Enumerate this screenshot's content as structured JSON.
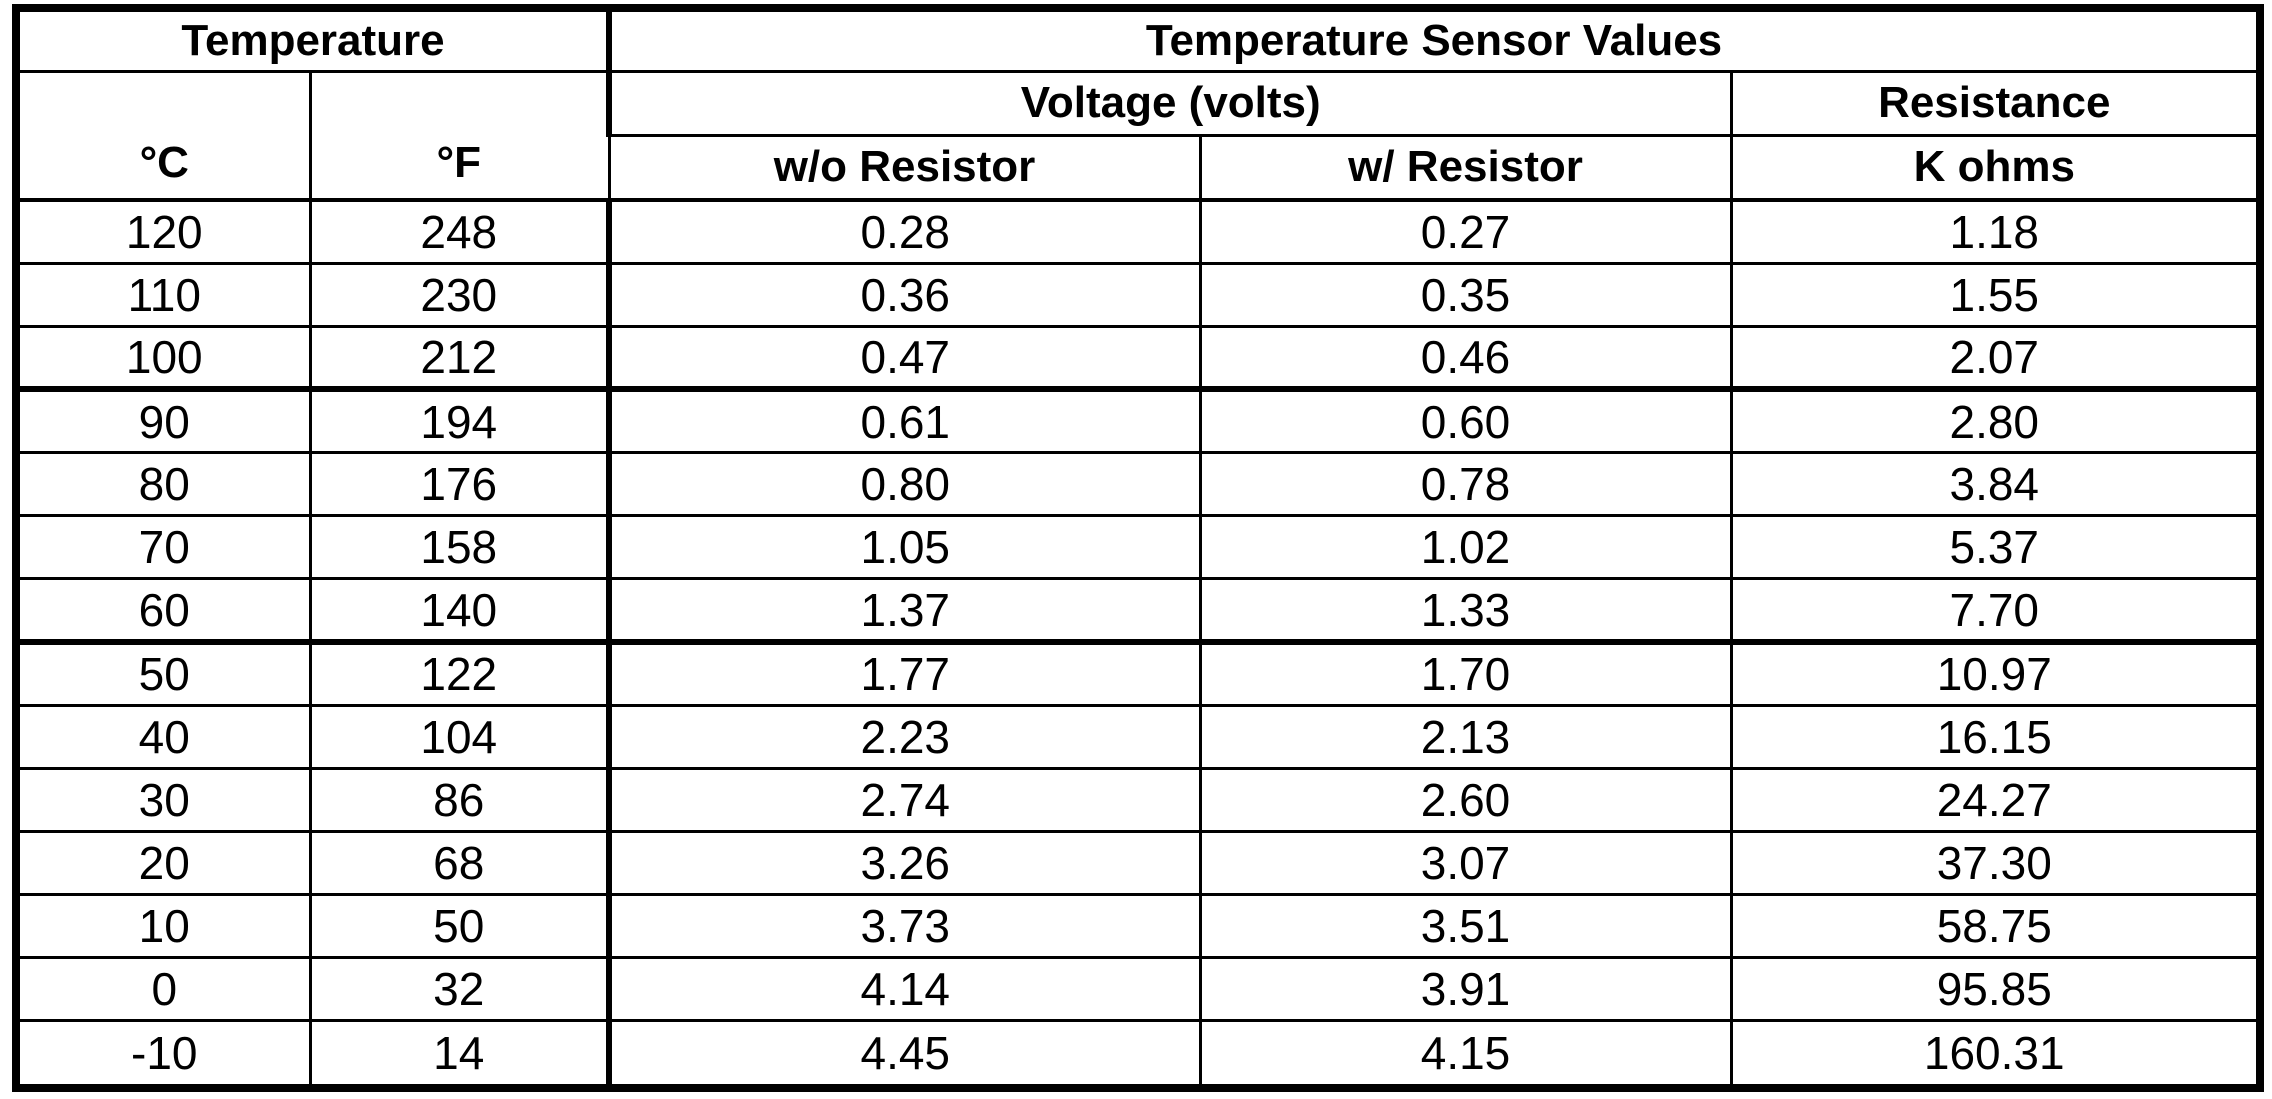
{
  "page": {
    "background": "#ffffff",
    "text_color": "#000000",
    "border_color": "#000000"
  },
  "table": {
    "group_headers": {
      "temperature": "Temperature",
      "sensor_values": "Temperature Sensor Values"
    },
    "sub_headers": {
      "voltage": "Voltage (volts)",
      "resistance": "Resistance"
    },
    "columns": {
      "celsius": "°C",
      "fahrenheit": "°F",
      "without_resistor": "w/o Resistor",
      "with_resistor": "w/ Resistor",
      "kohms": "K ohms"
    },
    "rows": [
      {
        "c": "120",
        "f": "248",
        "wo": "0.28",
        "w": "0.27",
        "r": "1.18"
      },
      {
        "c": "110",
        "f": "230",
        "wo": "0.36",
        "w": "0.35",
        "r": "1.55"
      },
      {
        "c": "100",
        "f": "212",
        "wo": "0.47",
        "w": "0.46",
        "r": "2.07"
      },
      {
        "c": "90",
        "f": "194",
        "wo": "0.61",
        "w": "0.60",
        "r": "2.80"
      },
      {
        "c": "80",
        "f": "176",
        "wo": "0.80",
        "w": "0.78",
        "r": "3.84"
      },
      {
        "c": "70",
        "f": "158",
        "wo": "1.05",
        "w": "1.02",
        "r": "5.37"
      },
      {
        "c": "60",
        "f": "140",
        "wo": "1.37",
        "w": "1.33",
        "r": "7.70"
      },
      {
        "c": "50",
        "f": "122",
        "wo": "1.77",
        "w": "1.70",
        "r": "10.97"
      },
      {
        "c": "40",
        "f": "104",
        "wo": "2.23",
        "w": "2.13",
        "r": "16.15"
      },
      {
        "c": "30",
        "f": "86",
        "wo": "2.74",
        "w": "2.60",
        "r": "24.27"
      },
      {
        "c": "20",
        "f": "68",
        "wo": "3.26",
        "w": "3.07",
        "r": "37.30"
      },
      {
        "c": "10",
        "f": "50",
        "wo": "3.73",
        "w": "3.51",
        "r": "58.75"
      },
      {
        "c": "0",
        "f": "32",
        "wo": "4.14",
        "w": "3.91",
        "r": "95.85"
      },
      {
        "c": "-10",
        "f": "14",
        "wo": "4.45",
        "w": "4.15",
        "r": "160.31"
      }
    ]
  },
  "chart_data": {
    "type": "table",
    "title": "Temperature Sensor Values",
    "columns": [
      "Temperature °C",
      "Temperature °F",
      "Voltage w/o Resistor (volts)",
      "Voltage w/ Resistor (volts)",
      "Resistance (K ohms)"
    ],
    "rows": [
      [
        120,
        248,
        0.28,
        0.27,
        1.18
      ],
      [
        110,
        230,
        0.36,
        0.35,
        1.55
      ],
      [
        100,
        212,
        0.47,
        0.46,
        2.07
      ],
      [
        90,
        194,
        0.61,
        0.6,
        2.8
      ],
      [
        80,
        176,
        0.8,
        0.78,
        3.84
      ],
      [
        70,
        158,
        1.05,
        1.02,
        5.37
      ],
      [
        60,
        140,
        1.37,
        1.33,
        7.7
      ],
      [
        50,
        122,
        1.77,
        1.7,
        10.97
      ],
      [
        40,
        104,
        2.23,
        2.13,
        16.15
      ],
      [
        30,
        86,
        2.74,
        2.6,
        24.27
      ],
      [
        20,
        68,
        3.26,
        3.07,
        37.3
      ],
      [
        10,
        50,
        3.73,
        3.51,
        58.75
      ],
      [
        0,
        32,
        4.14,
        3.91,
        95.85
      ],
      [
        -10,
        14,
        4.45,
        4.15,
        160.31
      ]
    ]
  }
}
